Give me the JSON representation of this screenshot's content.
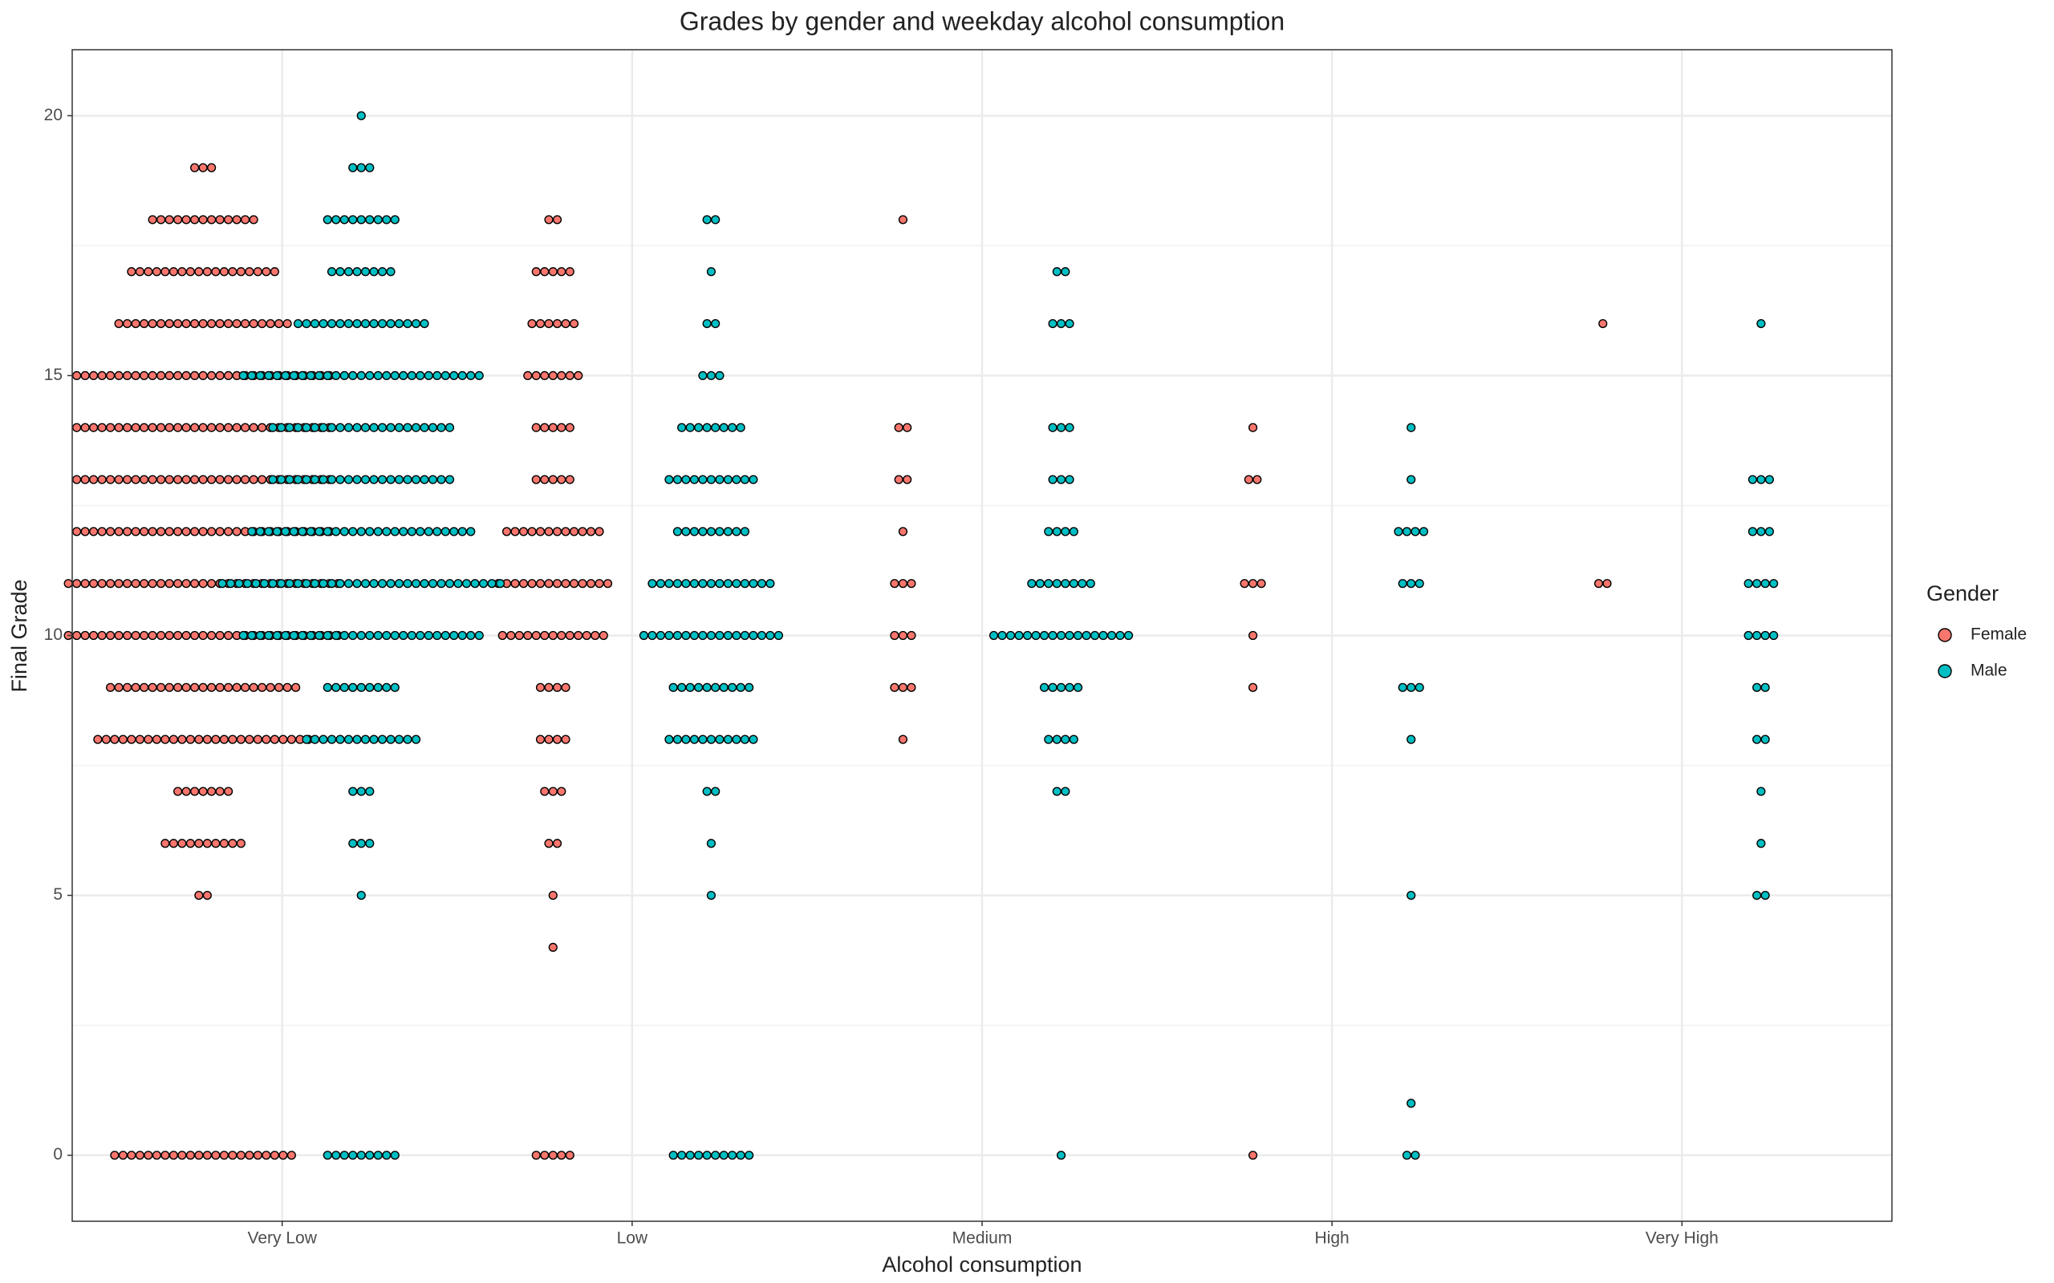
{
  "chart_data": {
    "type": "dotplot",
    "title": "Grades by gender and weekday alcohol consumption",
    "x_label": "Alcohol consumption",
    "y_label": "Final Grade",
    "legend_title": "Gender",
    "legend_position": "right",
    "grid": true,
    "categories": [
      "Very Low",
      "Low",
      "Medium",
      "High",
      "Very High"
    ],
    "ylim": [
      -1.27,
      21.27
    ],
    "yticks": [
      0,
      5,
      10,
      15,
      20
    ],
    "series": [
      {
        "name": "Female",
        "color": "#F8766D",
        "values": [
          [
            {
              "y": 19,
              "count": 3
            },
            {
              "y": 18,
              "count": 13
            },
            {
              "y": 17,
              "count": 18
            },
            {
              "y": 16,
              "count": 21
            },
            {
              "y": 15,
              "count": 31
            },
            {
              "y": 14,
              "count": 31
            },
            {
              "y": 13,
              "count": 31
            },
            {
              "y": 12,
              "count": 31
            },
            {
              "y": 11,
              "count": 33
            },
            {
              "y": 10,
              "count": 33
            },
            {
              "y": 9,
              "count": 23
            },
            {
              "y": 8,
              "count": 26
            },
            {
              "y": 7,
              "count": 7
            },
            {
              "y": 6,
              "count": 10
            },
            {
              "y": 5,
              "count": 2
            },
            {
              "y": 0,
              "count": 22
            }
          ],
          [
            {
              "y": 18,
              "count": 2
            },
            {
              "y": 17,
              "count": 5
            },
            {
              "y": 16,
              "count": 6
            },
            {
              "y": 15,
              "count": 7
            },
            {
              "y": 14,
              "count": 5
            },
            {
              "y": 13,
              "count": 5
            },
            {
              "y": 12,
              "count": 12
            },
            {
              "y": 11,
              "count": 14
            },
            {
              "y": 10,
              "count": 13
            },
            {
              "y": 9,
              "count": 4
            },
            {
              "y": 8,
              "count": 4
            },
            {
              "y": 7,
              "count": 3
            },
            {
              "y": 6,
              "count": 2
            },
            {
              "y": 5,
              "count": 1
            },
            {
              "y": 4,
              "count": 1
            },
            {
              "y": 0,
              "count": 5
            }
          ],
          [
            {
              "y": 18,
              "count": 1
            },
            {
              "y": 14,
              "count": 2
            },
            {
              "y": 13,
              "count": 2
            },
            {
              "y": 12,
              "count": 1
            },
            {
              "y": 11,
              "count": 3
            },
            {
              "y": 10,
              "count": 3
            },
            {
              "y": 9,
              "count": 3
            },
            {
              "y": 8,
              "count": 1
            }
          ],
          [
            {
              "y": 14,
              "count": 1
            },
            {
              "y": 13,
              "count": 2
            },
            {
              "y": 11,
              "count": 3
            },
            {
              "y": 10,
              "count": 1
            },
            {
              "y": 9,
              "count": 1
            },
            {
              "y": 0,
              "count": 1
            }
          ],
          [
            {
              "y": 16,
              "count": 1
            },
            {
              "y": 11,
              "count": 2
            }
          ]
        ]
      },
      {
        "name": "Male",
        "color": "#00BFC4",
        "values": [
          [
            {
              "y": 20,
              "count": 1
            },
            {
              "y": 19,
              "count": 3
            },
            {
              "y": 18,
              "count": 9
            },
            {
              "y": 17,
              "count": 8
            },
            {
              "y": 16,
              "count": 16
            },
            {
              "y": 15,
              "count": 29
            },
            {
              "y": 14,
              "count": 22
            },
            {
              "y": 13,
              "count": 22
            },
            {
              "y": 12,
              "count": 27
            },
            {
              "y": 11,
              "count": 34
            },
            {
              "y": 10,
              "count": 29
            },
            {
              "y": 9,
              "count": 9
            },
            {
              "y": 8,
              "count": 14
            },
            {
              "y": 7,
              "count": 3
            },
            {
              "y": 6,
              "count": 3
            },
            {
              "y": 5,
              "count": 1
            },
            {
              "y": 0,
              "count": 9
            }
          ],
          [
            {
              "y": 18,
              "count": 2
            },
            {
              "y": 17,
              "count": 1
            },
            {
              "y": 16,
              "count": 2
            },
            {
              "y": 15,
              "count": 3
            },
            {
              "y": 14,
              "count": 8
            },
            {
              "y": 13,
              "count": 11
            },
            {
              "y": 12,
              "count": 9
            },
            {
              "y": 11,
              "count": 15
            },
            {
              "y": 10,
              "count": 17
            },
            {
              "y": 9,
              "count": 10
            },
            {
              "y": 8,
              "count": 11
            },
            {
              "y": 7,
              "count": 2
            },
            {
              "y": 6,
              "count": 1
            },
            {
              "y": 5,
              "count": 1
            },
            {
              "y": 0,
              "count": 10
            }
          ],
          [
            {
              "y": 17,
              "count": 2
            },
            {
              "y": 16,
              "count": 3
            },
            {
              "y": 14,
              "count": 3
            },
            {
              "y": 13,
              "count": 3
            },
            {
              "y": 12,
              "count": 4
            },
            {
              "y": 11,
              "count": 8
            },
            {
              "y": 10,
              "count": 17
            },
            {
              "y": 9,
              "count": 5
            },
            {
              "y": 8,
              "count": 4
            },
            {
              "y": 7,
              "count": 2
            },
            {
              "y": 0,
              "count": 1
            }
          ],
          [
            {
              "y": 14,
              "count": 1
            },
            {
              "y": 13,
              "count": 1
            },
            {
              "y": 12,
              "count": 4
            },
            {
              "y": 11,
              "count": 3
            },
            {
              "y": 9,
              "count": 3
            },
            {
              "y": 8,
              "count": 1
            },
            {
              "y": 5,
              "count": 1
            },
            {
              "y": 1,
              "count": 1
            },
            {
              "y": 0,
              "count": 2
            }
          ],
          [
            {
              "y": 16,
              "count": 1
            },
            {
              "y": 13,
              "count": 3
            },
            {
              "y": 12,
              "count": 3
            },
            {
              "y": 11,
              "count": 4
            },
            {
              "y": 10,
              "count": 4
            },
            {
              "y": 9,
              "count": 2
            },
            {
              "y": 8,
              "count": 2
            },
            {
              "y": 7,
              "count": 1
            },
            {
              "y": 6,
              "count": 1
            },
            {
              "y": 5,
              "count": 2
            }
          ]
        ]
      }
    ]
  }
}
